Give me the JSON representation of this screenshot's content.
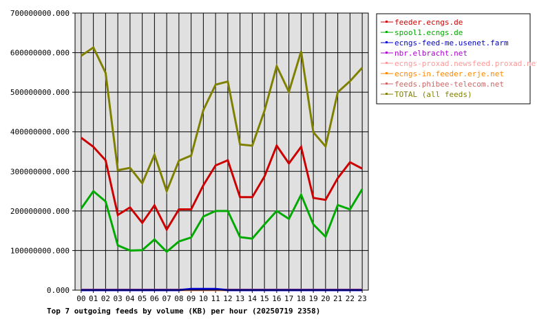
{
  "chart_data": {
    "type": "line",
    "title": "Top 7 outgoing feeds by volume (KB) per hour (20250719 2358)",
    "ylim": [
      0,
      700000000
    ],
    "y_ticks": [
      "0.000",
      "100000000.000",
      "200000000.000",
      "300000000.000",
      "400000000.000",
      "500000000.000",
      "600000000.000",
      "700000000.000"
    ],
    "categories": [
      "00",
      "01",
      "02",
      "03",
      "04",
      "05",
      "06",
      "07",
      "08",
      "09",
      "10",
      "11",
      "12",
      "13",
      "14",
      "15",
      "16",
      "17",
      "18",
      "19",
      "20",
      "21",
      "22",
      "23"
    ],
    "grid": true,
    "legend_position": "right",
    "series": [
      {
        "name": "feeder.ecngs.de",
        "color": "#cc0000",
        "values": [
          385000000,
          362000000,
          328000000,
          190000000,
          209000000,
          170000000,
          214000000,
          153000000,
          204000000,
          204000000,
          265000000,
          315000000,
          328000000,
          235000000,
          235000000,
          287000000,
          365000000,
          320000000,
          362000000,
          233000000,
          228000000,
          283000000,
          323000000,
          307000000
        ]
      },
      {
        "name": "spool1.ecngs.de",
        "color": "#00aa00",
        "values": [
          206000000,
          250000000,
          224000000,
          113000000,
          100000000,
          101000000,
          128000000,
          97000000,
          123000000,
          133000000,
          186000000,
          200000000,
          200000000,
          134000000,
          130000000,
          166000000,
          200000000,
          180000000,
          241000000,
          166000000,
          135000000,
          215000000,
          204000000,
          255000000
        ]
      },
      {
        "name": "ecngs-feed-me.usenet.farm",
        "color": "#0000cc",
        "values": [
          0,
          0,
          0,
          0,
          0,
          0,
          0,
          0,
          0,
          3000000,
          3000000,
          3000000,
          0,
          0,
          0,
          0,
          0,
          0,
          0,
          0,
          0,
          0,
          0,
          0
        ]
      },
      {
        "name": "nbr.elbracht.net",
        "color": "#aa00cc",
        "values": [
          0,
          0,
          0,
          0,
          0,
          0,
          0,
          0,
          0,
          0,
          0,
          0,
          0,
          0,
          0,
          0,
          0,
          0,
          0,
          0,
          0,
          0,
          0,
          0
        ]
      },
      {
        "name": "ecngs-proxad.newsfeed.proxad.net",
        "color": "#ff9999",
        "values": [
          500000,
          500000,
          500000,
          500000,
          500000,
          500000,
          500000,
          500000,
          500000,
          500000,
          500000,
          500000,
          500000,
          500000,
          500000,
          500000,
          500000,
          500000,
          500000,
          500000,
          500000,
          500000,
          500000,
          500000
        ]
      },
      {
        "name": "ecngs-in.feeder.erje.net",
        "color": "#ff8800",
        "values": [
          0,
          0,
          0,
          0,
          0,
          0,
          0,
          0,
          0,
          0,
          0,
          0,
          0,
          0,
          0,
          0,
          0,
          0,
          0,
          0,
          0,
          0,
          0,
          0
        ]
      },
      {
        "name": "feeds.phibee-telecom.net",
        "color": "#cc6666",
        "values": [
          1000000,
          1000000,
          1000000,
          1000000,
          1000000,
          1000000,
          1000000,
          1000000,
          1000000,
          1000000,
          1000000,
          1000000,
          1000000,
          1000000,
          1000000,
          1000000,
          1000000,
          1000000,
          1000000,
          1000000,
          1000000,
          1000000,
          1000000,
          1000000
        ]
      },
      {
        "name": "TOTAL (all feeds)",
        "color": "#808000",
        "values": [
          592000000,
          613000000,
          549000000,
          303000000,
          309000000,
          270000000,
          342000000,
          250000000,
          327000000,
          340000000,
          455000000,
          519000000,
          527000000,
          368000000,
          365000000,
          453000000,
          566000000,
          501000000,
          603000000,
          399000000,
          363000000,
          500000000,
          528000000,
          562000000
        ]
      }
    ]
  }
}
